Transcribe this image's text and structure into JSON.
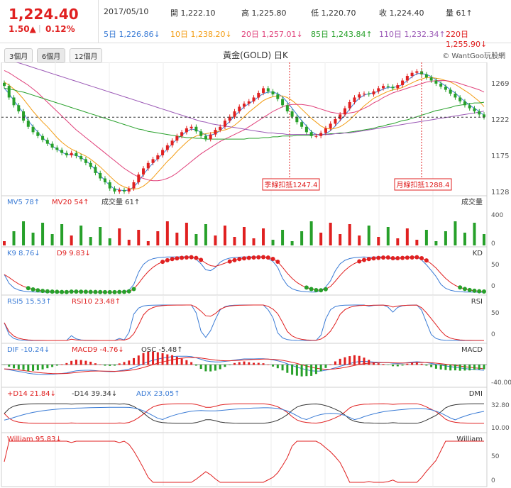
{
  "quote": {
    "price": "1,224.40",
    "change": "1.50▲",
    "percent": "0.12%",
    "date": "2017/05/10",
    "open": "開 1,222.10",
    "high": "高 1,225.80",
    "low": "低 1,220.70",
    "close": "收 1,224.40",
    "volume": "量 61↑"
  },
  "ma_labels": [
    {
      "label": "5日 1,226.86↓",
      "color": "#3a7bd5"
    },
    {
      "label": "10日 1,238.20↓",
      "color": "#f39c12"
    },
    {
      "label": "20日 1,257.01↓",
      "color": "#e0407a"
    },
    {
      "label": "85日 1,243.84↑",
      "color": "#27a02a"
    },
    {
      "label": "110日 1,232.34↑",
      "color": "#9b59b6"
    },
    {
      "label": "220日 1,255.90↓",
      "color": "#e02020"
    }
  ],
  "tabs": [
    "3個月",
    "6個月",
    "12個月"
  ],
  "active_tab": 1,
  "chart_title": "黃金(GOLD) 日K",
  "brand": "© WantGoo玩股網",
  "panels": {
    "price": {
      "ticks": [
        "1269",
        "1222",
        "1175",
        "1128"
      ],
      "annotations": [
        "季線扣抵1247.4",
        "月線扣抵1288.4"
      ]
    },
    "volume": {
      "labels": [
        {
          "text": "MV5 78↑",
          "color": "#3a7bd5"
        },
        {
          "text": "MV20 54↑",
          "color": "#e02020"
        },
        {
          "text": "成交量 61↑",
          "color": "#333333"
        }
      ],
      "name": "成交量",
      "ticks": [
        "400",
        "0"
      ]
    },
    "kd": {
      "labels": [
        {
          "text": "K9 8.76↓",
          "color": "#3a7bd5"
        },
        {
          "text": "D9 9.83↓",
          "color": "#e02020"
        }
      ],
      "name": "KD",
      "ticks": [
        "50",
        "0"
      ]
    },
    "rsi": {
      "labels": [
        {
          "text": "RSI5 15.53↑",
          "color": "#3a7bd5"
        },
        {
          "text": "RSI10 23.48↑",
          "color": "#e02020"
        }
      ],
      "name": "RSI",
      "ticks": [
        "50",
        "0"
      ]
    },
    "macd": {
      "labels": [
        {
          "text": "DIF -10.24↓",
          "color": "#3a7bd5"
        },
        {
          "text": "MACD9 -4.76↓",
          "color": "#e02020"
        },
        {
          "text": "OSC -5.48↑",
          "color": "#333333"
        }
      ],
      "name": "MACD",
      "ticks": [
        "-40.00"
      ]
    },
    "dmi": {
      "labels": [
        {
          "text": "+D14 21.84↓",
          "color": "#e02020"
        },
        {
          "text": "-D14 39.34↓",
          "color": "#333333"
        },
        {
          "text": "ADX 23.05↑",
          "color": "#3a7bd5"
        }
      ],
      "name": "DMI",
      "ticks": [
        "32.80",
        "10.00"
      ]
    },
    "william": {
      "labels": [
        {
          "text": "William 95.83↓",
          "color": "#e02020"
        }
      ],
      "name": "William",
      "ticks": [
        "50",
        "0"
      ]
    }
  },
  "chart_data": {
    "type": "line",
    "title": "黃金(GOLD) 日K",
    "y_range": [
      1128,
      1290
    ],
    "last_close": 1224.4,
    "close": [
      1265,
      1250,
      1240,
      1232,
      1220,
      1212,
      1205,
      1200,
      1195,
      1190,
      1185,
      1182,
      1178,
      1175,
      1178,
      1174,
      1170,
      1165,
      1160,
      1152,
      1145,
      1140,
      1132,
      1128,
      1130,
      1128,
      1132,
      1140,
      1150,
      1158,
      1165,
      1170,
      1175,
      1182,
      1188,
      1194,
      1200,
      1205,
      1210,
      1212,
      1206,
      1200,
      1196,
      1202,
      1208,
      1212,
      1220,
      1225,
      1232,
      1238,
      1242,
      1245,
      1250,
      1256,
      1262,
      1258,
      1254,
      1248,
      1240,
      1232,
      1225,
      1218,
      1212,
      1205,
      1200,
      1200,
      1204,
      1210,
      1216,
      1222,
      1228,
      1236,
      1244,
      1250,
      1254,
      1255,
      1254,
      1258,
      1262,
      1265,
      1264,
      1262,
      1266,
      1272,
      1278,
      1282,
      1284,
      1280,
      1276,
      1272,
      1268,
      1264,
      1260,
      1255,
      1250,
      1245,
      1240,
      1236,
      1232,
      1228,
      1224.4
    ],
    "ma5": [
      1262,
      1255,
      1246,
      1238,
      1230,
      1220,
      1212,
      1205,
      1198,
      1192,
      1187,
      1183,
      1179,
      1176,
      1176,
      1175,
      1172,
      1168,
      1163,
      1156,
      1149,
      1142,
      1136,
      1131,
      1130,
      1129,
      1130,
      1134,
      1141,
      1150,
      1158,
      1165,
      1171,
      1177,
      1183,
      1190,
      1196,
      1201,
      1206,
      1209,
      1208,
      1205,
      1201,
      1201,
      1203,
      1207,
      1213,
      1219,
      1226,
      1232,
      1238,
      1242,
      1246,
      1251,
      1255,
      1257,
      1257,
      1255,
      1251,
      1244,
      1236,
      1228,
      1220,
      1213,
      1206,
      1202,
      1201,
      1203,
      1207,
      1213,
      1220,
      1227,
      1235,
      1243,
      1249,
      1253,
      1255,
      1256,
      1258,
      1261,
      1263,
      1263,
      1264,
      1267,
      1272,
      1277,
      1281,
      1281,
      1280,
      1277,
      1273,
      1269,
      1265,
      1260,
      1256,
      1250,
      1245,
      1240,
      1236,
      1232,
      1226.86
    ],
    "ma10": [
      1270,
      1266,
      1261,
      1255,
      1248,
      1240,
      1232,
      1225,
      1218,
      1212,
      1205,
      1198,
      1192,
      1187,
      1183,
      1180,
      1177,
      1174,
      1170,
      1165,
      1160,
      1154,
      1148,
      1142,
      1137,
      1134,
      1132,
      1131,
      1132,
      1135,
      1140,
      1146,
      1153,
      1160,
      1167,
      1173,
      1180,
      1186,
      1192,
      1197,
      1200,
      1202,
      1203,
      1204,
      1205,
      1207,
      1208,
      1210,
      1214,
      1219,
      1225,
      1231,
      1236,
      1241,
      1246,
      1249,
      1251,
      1252,
      1252,
      1250,
      1246,
      1241,
      1235,
      1229,
      1223,
      1218,
      1213,
      1210,
      1209,
      1210,
      1212,
      1216,
      1221,
      1227,
      1233,
      1239,
      1244,
      1249,
      1252,
      1255,
      1258,
      1260,
      1261,
      1263,
      1266,
      1269,
      1272,
      1274,
      1276,
      1276,
      1275,
      1274,
      1272,
      1270,
      1267,
      1263,
      1259,
      1255,
      1250,
      1245,
      1238.2
    ],
    "ma20": [
      1285,
      1282,
      1278,
      1274,
      1270,
      1266,
      1261,
      1256,
      1250,
      1244,
      1238,
      1232,
      1226,
      1220,
      1214,
      1208,
      1203,
      1198,
      1193,
      1188,
      1183,
      1178,
      1173,
      1168,
      1163,
      1158,
      1154,
      1150,
      1147,
      1145,
      1143,
      1142,
      1142,
      1143,
      1145,
      1148,
      1152,
      1157,
      1162,
      1167,
      1172,
      1177,
      1181,
      1185,
      1189,
      1193,
      1196,
      1199,
      1202,
      1205,
      1208,
      1212,
      1216,
      1220,
      1224,
      1228,
      1232,
      1235,
      1238,
      1240,
      1241,
      1241,
      1241,
      1240,
      1239,
      1237,
      1235,
      1233,
      1231,
      1230,
      1229,
      1229,
      1230,
      1231,
      1233,
      1236,
      1239,
      1243,
      1246,
      1250,
      1253,
      1256,
      1258,
      1260,
      1262,
      1264,
      1266,
      1268,
      1270,
      1271,
      1272,
      1272,
      1272,
      1271,
      1270,
      1268,
      1266,
      1264,
      1262,
      1260,
      1257.01
    ],
    "ma85": [
      1262,
      1261,
      1260,
      1258,
      1257,
      1255,
      1253,
      1251,
      1249,
      1247,
      1245,
      1243,
      1241,
      1239,
      1237,
      1235,
      1233,
      1231,
      1229,
      1227,
      1225,
      1223,
      1221,
      1219,
      1217,
      1215,
      1213,
      1211,
      1209,
      1208,
      1206,
      1205,
      1204,
      1203,
      1202,
      1201,
      1200,
      1199,
      1198,
      1198,
      1197,
      1197,
      1196,
      1196,
      1196,
      1196,
      1196,
      1196,
      1196,
      1196,
      1196,
      1197,
      1197,
      1197,
      1198,
      1198,
      1199,
      1199,
      1200,
      1200,
      1200,
      1201,
      1201,
      1201,
      1201,
      1202,
      1202,
      1202,
      1203,
      1203,
      1204,
      1204,
      1205,
      1206,
      1207,
      1208,
      1209,
      1210,
      1212,
      1213,
      1215,
      1216,
      1218,
      1220,
      1221,
      1223,
      1225,
      1227,
      1229,
      1231,
      1233,
      1234,
      1236,
      1237,
      1239,
      1240,
      1241,
      1242,
      1243,
      1243,
      1243.84
    ],
    "ma110": [
      1300,
      1299,
      1297,
      1295,
      1293,
      1291,
      1289,
      1287,
      1285,
      1283,
      1281,
      1279,
      1277,
      1275,
      1273,
      1271,
      1269,
      1267,
      1265,
      1263,
      1261,
      1259,
      1257,
      1255,
      1253,
      1251,
      1249,
      1247,
      1245,
      1243,
      1241,
      1239,
      1237,
      1235,
      1233,
      1231,
      1229,
      1227,
      1225,
      1223,
      1221,
      1219,
      1218,
      1216,
      1215,
      1214,
      1213,
      1212,
      1211,
      1210,
      1209,
      1208,
      1207,
      1206,
      1205,
      1204,
      1204,
      1203,
      1203,
      1202,
      1202,
      1202,
      1202,
      1202,
      1202,
      1202,
      1202,
      1202,
      1202,
      1203,
      1203,
      1204,
      1204,
      1205,
      1206,
      1207,
      1208,
      1209,
      1210,
      1211,
      1212,
      1213,
      1214,
      1215,
      1216,
      1217,
      1218,
      1219,
      1220,
      1221,
      1222,
      1223,
      1224,
      1225,
      1226,
      1227,
      1228,
      1229,
      1230,
      1231,
      1232.34
    ]
  }
}
